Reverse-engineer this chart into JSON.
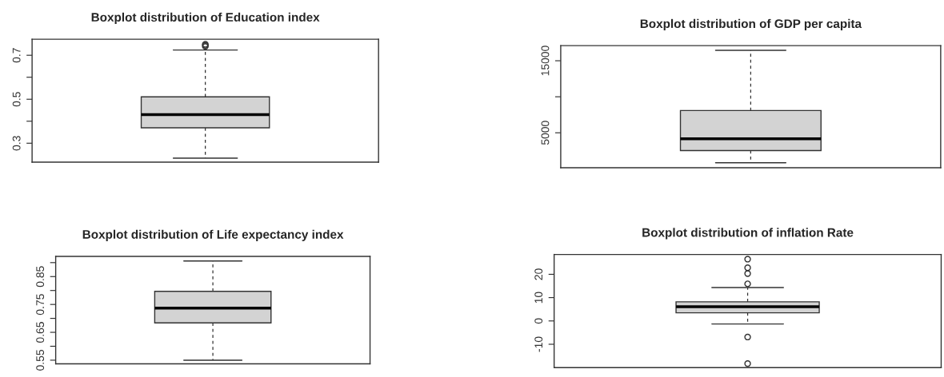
{
  "chart_data": [
    {
      "type": "box",
      "title": "Boxplot distribution of Education index",
      "categories": [
        null
      ],
      "boxes": [
        {
          "low": 0.232,
          "q1": 0.37,
          "median": 0.43,
          "q3": 0.511,
          "high": 0.724,
          "outliers": [
            0.74,
            0.745,
            0.75
          ]
        }
      ],
      "ylim": [
        0.214,
        0.773
      ],
      "yticks": [
        0.3,
        {
          "value": 0.4,
          "label": null
        },
        0.5,
        {
          "value": 0.6,
          "label": null
        },
        0.7
      ],
      "color": "#d3d3d3",
      "grid": false,
      "legend": false
    },
    {
      "type": "box",
      "title": "Boxplot distribution of GDP per capita",
      "categories": [
        null
      ],
      "boxes": [
        {
          "low": 845,
          "q1": 2530,
          "median": 4180,
          "q3": 8090,
          "high": 16450
        }
      ],
      "ylim": [
        145,
        17100
      ],
      "yticks": [
        5000,
        {
          "value": 10000,
          "label": null
        },
        15000
      ],
      "color": "#d3d3d3",
      "grid": false,
      "legend": false
    },
    {
      "type": "box",
      "title": "Boxplot distribution of Life expectancy index",
      "categories": [
        null
      ],
      "boxes": [
        {
          "low": 0.55,
          "q1": 0.684,
          "median": 0.737,
          "q3": 0.797,
          "high": 0.906
        }
      ],
      "ylim": [
        0.537,
        0.9225
      ],
      "yticks": [
        0.55,
        {
          "value": 0.6,
          "label": null
        },
        0.65,
        {
          "value": 0.7,
          "label": null
        },
        0.75,
        {
          "value": 0.8,
          "label": null
        },
        0.85,
        {
          "value": 0.9,
          "label": null
        }
      ],
      "color": "#d3d3d3",
      "grid": false,
      "legend": false
    },
    {
      "type": "box",
      "title": "Boxplot distribution of inflation Rate",
      "categories": [
        null
      ],
      "boxes": [
        {
          "low": -1.3,
          "q1": 3.5,
          "median": 6.1,
          "q3": 8.2,
          "high": 14.3,
          "outliers": [
            26.5,
            22.8,
            20.3,
            15.9,
            -6.9,
            -18.3
          ]
        }
      ],
      "ylim": [
        -20,
        28.5
      ],
      "yticks": [
        -10,
        0,
        10,
        20
      ],
      "color": "#d3d3d3",
      "grid": false,
      "legend": false
    }
  ]
}
